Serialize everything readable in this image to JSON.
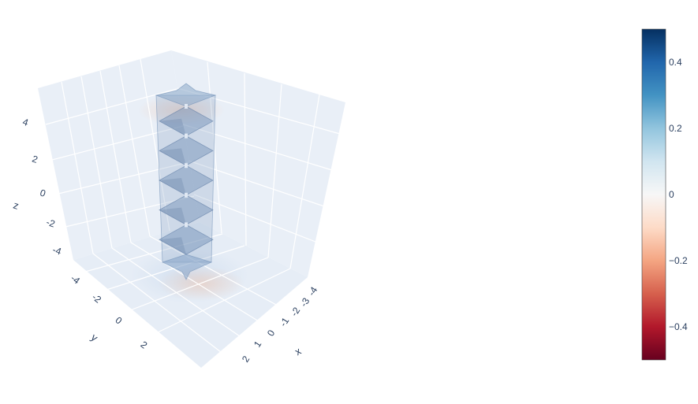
{
  "chart_data": {
    "type": "isosurface",
    "title": "",
    "axes": {
      "x": {
        "label": "x",
        "range": [
          -4,
          4
        ],
        "ticks": [
          "-4",
          "-3",
          "-2",
          "-1",
          "0",
          "1",
          "2"
        ]
      },
      "y": {
        "label": "y",
        "range": [
          -4,
          4
        ],
        "ticks": [
          "-4",
          "-2",
          "0",
          "2"
        ]
      },
      "z": {
        "label": "z",
        "range": [
          -5,
          5
        ],
        "ticks": [
          "4",
          "2",
          "0",
          "-2",
          "-4"
        ]
      }
    },
    "colorbar": {
      "colorscale": "RdBu",
      "cmin": -0.5,
      "cmax": 0.5,
      "ticks": [
        0.4,
        0.2,
        0,
        -0.2,
        -0.4
      ],
      "tick_labels": [
        "0.4",
        "0.2",
        "0",
        "−0.2",
        "−0.4"
      ]
    },
    "surface": {
      "shape": "vertical column with stacked diamond cross-sections",
      "x_center": 0,
      "y_center": 0,
      "z_range": [
        -4.5,
        4.5
      ],
      "segments": 5,
      "color": "#6f8fb6",
      "opacity": 0.35
    },
    "colors": {
      "scene_background": "#e5ecf6",
      "gridline": "#ffffff",
      "text": "#2a3f5f",
      "positive": "#053061",
      "neutral": "#f7f7f7",
      "negative": "#67001f"
    }
  }
}
